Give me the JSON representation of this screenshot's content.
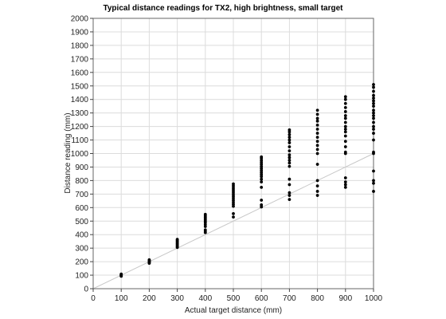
{
  "chart_data": {
    "type": "scatter",
    "title": "Typical distance readings for TX2, high brightness, small target",
    "xlabel": "Actual target distance (mm)",
    "ylabel": "Distance reading (mm)",
    "xlim": [
      0,
      1000
    ],
    "ylim": [
      0,
      2000
    ],
    "x_ticks": [
      0,
      100,
      200,
      300,
      400,
      500,
      600,
      700,
      800,
      900,
      1000
    ],
    "y_ticks": [
      0,
      100,
      200,
      300,
      400,
      500,
      600,
      700,
      800,
      900,
      1000,
      1100,
      1200,
      1300,
      1400,
      1500,
      1600,
      1700,
      1800,
      1900,
      2000
    ],
    "grid": true,
    "reference_line": {
      "from": [
        0,
        0
      ],
      "to": [
        1000,
        1000
      ],
      "color": "#c8c8c8"
    },
    "marker_color": "#000000",
    "series": [
      {
        "points": [
          [
            100,
            92
          ],
          [
            100,
            96
          ],
          [
            100,
            100
          ],
          [
            100,
            104
          ],
          [
            100,
            108
          ],
          [
            200,
            188
          ],
          [
            200,
            194
          ],
          [
            200,
            198
          ],
          [
            200,
            202
          ],
          [
            200,
            206
          ],
          [
            200,
            210
          ],
          [
            200,
            214
          ],
          [
            300,
            305
          ],
          [
            300,
            312
          ],
          [
            300,
            320
          ],
          [
            300,
            328
          ],
          [
            300,
            335
          ],
          [
            300,
            342
          ],
          [
            300,
            350
          ],
          [
            300,
            358
          ],
          [
            300,
            365
          ],
          [
            400,
            415
          ],
          [
            400,
            425
          ],
          [
            400,
            435
          ],
          [
            400,
            460
          ],
          [
            400,
            475
          ],
          [
            400,
            490
          ],
          [
            400,
            500
          ],
          [
            400,
            510
          ],
          [
            400,
            520
          ],
          [
            400,
            530
          ],
          [
            400,
            540
          ],
          [
            400,
            550
          ],
          [
            500,
            530
          ],
          [
            500,
            555
          ],
          [
            500,
            610
          ],
          [
            500,
            625
          ],
          [
            500,
            640
          ],
          [
            500,
            655
          ],
          [
            500,
            670
          ],
          [
            500,
            685
          ],
          [
            500,
            700
          ],
          [
            500,
            715
          ],
          [
            500,
            730
          ],
          [
            500,
            745
          ],
          [
            500,
            760
          ],
          [
            500,
            775
          ],
          [
            600,
            605
          ],
          [
            600,
            620
          ],
          [
            600,
            655
          ],
          [
            600,
            750
          ],
          [
            600,
            790
          ],
          [
            600,
            810
          ],
          [
            600,
            830
          ],
          [
            600,
            845
          ],
          [
            600,
            860
          ],
          [
            600,
            875
          ],
          [
            600,
            890
          ],
          [
            600,
            905
          ],
          [
            600,
            920
          ],
          [
            600,
            935
          ],
          [
            600,
            950
          ],
          [
            600,
            965
          ],
          [
            600,
            975
          ],
          [
            700,
            660
          ],
          [
            700,
            690
          ],
          [
            700,
            710
          ],
          [
            700,
            770
          ],
          [
            700,
            810
          ],
          [
            700,
            905
          ],
          [
            700,
            930
          ],
          [
            700,
            950
          ],
          [
            700,
            970
          ],
          [
            700,
            990
          ],
          [
            700,
            1020
          ],
          [
            700,
            1050
          ],
          [
            700,
            1080
          ],
          [
            700,
            1100
          ],
          [
            700,
            1120
          ],
          [
            700,
            1140
          ],
          [
            700,
            1160
          ],
          [
            700,
            1175
          ],
          [
            800,
            690
          ],
          [
            800,
            720
          ],
          [
            800,
            760
          ],
          [
            800,
            800
          ],
          [
            800,
            920
          ],
          [
            800,
            1000
          ],
          [
            800,
            1030
          ],
          [
            800,
            1060
          ],
          [
            800,
            1090
          ],
          [
            800,
            1120
          ],
          [
            800,
            1150
          ],
          [
            800,
            1180
          ],
          [
            800,
            1210
          ],
          [
            800,
            1240
          ],
          [
            800,
            1260
          ],
          [
            800,
            1290
          ],
          [
            800,
            1320
          ],
          [
            900,
            750
          ],
          [
            900,
            770
          ],
          [
            900,
            790
          ],
          [
            900,
            820
          ],
          [
            900,
            1000
          ],
          [
            900,
            1010
          ],
          [
            900,
            1050
          ],
          [
            900,
            1090
          ],
          [
            900,
            1130
          ],
          [
            900,
            1160
          ],
          [
            900,
            1180
          ],
          [
            900,
            1200
          ],
          [
            900,
            1230
          ],
          [
            900,
            1260
          ],
          [
            900,
            1280
          ],
          [
            900,
            1310
          ],
          [
            900,
            1340
          ],
          [
            900,
            1370
          ],
          [
            900,
            1400
          ],
          [
            900,
            1420
          ],
          [
            1000,
            720
          ],
          [
            1000,
            780
          ],
          [
            1000,
            800
          ],
          [
            1000,
            870
          ],
          [
            1000,
            1000
          ],
          [
            1000,
            1010
          ],
          [
            1000,
            1100
          ],
          [
            1000,
            1150
          ],
          [
            1000,
            1180
          ],
          [
            1000,
            1200
          ],
          [
            1000,
            1230
          ],
          [
            1000,
            1260
          ],
          [
            1000,
            1280
          ],
          [
            1000,
            1300
          ],
          [
            1000,
            1320
          ],
          [
            1000,
            1350
          ],
          [
            1000,
            1370
          ],
          [
            1000,
            1390
          ],
          [
            1000,
            1410
          ],
          [
            1000,
            1430
          ],
          [
            1000,
            1460
          ],
          [
            1000,
            1490
          ],
          [
            1000,
            1510
          ]
        ]
      }
    ]
  }
}
